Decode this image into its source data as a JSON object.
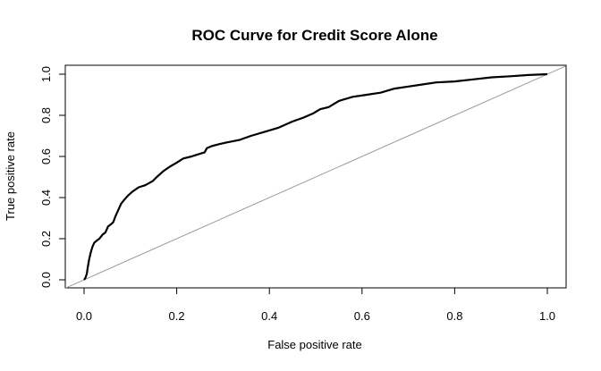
{
  "chart_data": {
    "type": "line",
    "title": "ROC Curve for Credit Score Alone",
    "xlabel": "False positive rate",
    "ylabel": "True positive rate",
    "xlim": [
      0,
      1
    ],
    "ylim": [
      0,
      1
    ],
    "x_ticks": [
      0.0,
      0.2,
      0.4,
      0.6,
      0.8,
      1.0
    ],
    "x_tick_labels": [
      "0.0",
      "0.2",
      "0.4",
      "0.6",
      "0.8",
      "1.0"
    ],
    "y_ticks": [
      0.0,
      0.2,
      0.4,
      0.6,
      0.8,
      1.0
    ],
    "y_tick_labels": [
      "0.0",
      "0.2",
      "0.4",
      "0.6",
      "0.8",
      "1.0"
    ],
    "grid": false,
    "colors": {
      "curve": "#000000",
      "reference": "#9a9a9a",
      "frame": "#000000"
    },
    "series": [
      {
        "x": [
          0.0,
          0.003,
          0.006,
          0.008,
          0.011,
          0.014,
          0.018,
          0.022,
          0.027,
          0.033,
          0.04,
          0.046,
          0.052,
          0.058,
          0.063,
          0.068,
          0.074,
          0.08,
          0.087,
          0.095,
          0.105,
          0.118,
          0.132,
          0.148,
          0.157,
          0.162,
          0.172,
          0.185,
          0.2,
          0.214,
          0.232,
          0.246,
          0.26,
          0.265,
          0.275,
          0.292,
          0.312,
          0.335,
          0.36,
          0.39,
          0.42,
          0.45,
          0.475,
          0.495,
          0.51,
          0.528,
          0.55,
          0.58,
          0.61,
          0.64,
          0.67,
          0.7,
          0.73,
          0.76,
          0.8,
          0.84,
          0.88,
          0.92,
          0.96,
          1.0
        ],
        "y": [
          0.0,
          0.01,
          0.03,
          0.06,
          0.1,
          0.13,
          0.16,
          0.18,
          0.19,
          0.2,
          0.22,
          0.23,
          0.26,
          0.27,
          0.28,
          0.31,
          0.34,
          0.37,
          0.39,
          0.41,
          0.43,
          0.45,
          0.46,
          0.48,
          0.5,
          0.51,
          0.53,
          0.55,
          0.57,
          0.59,
          0.6,
          0.61,
          0.62,
          0.64,
          0.65,
          0.66,
          0.67,
          0.68,
          0.7,
          0.72,
          0.74,
          0.77,
          0.79,
          0.81,
          0.83,
          0.84,
          0.87,
          0.89,
          0.9,
          0.91,
          0.93,
          0.94,
          0.95,
          0.96,
          0.965,
          0.975,
          0.985,
          0.99,
          0.996,
          1.0
        ]
      }
    ],
    "reference_line": {
      "x": [
        0,
        1
      ],
      "y": [
        0,
        1
      ]
    }
  }
}
